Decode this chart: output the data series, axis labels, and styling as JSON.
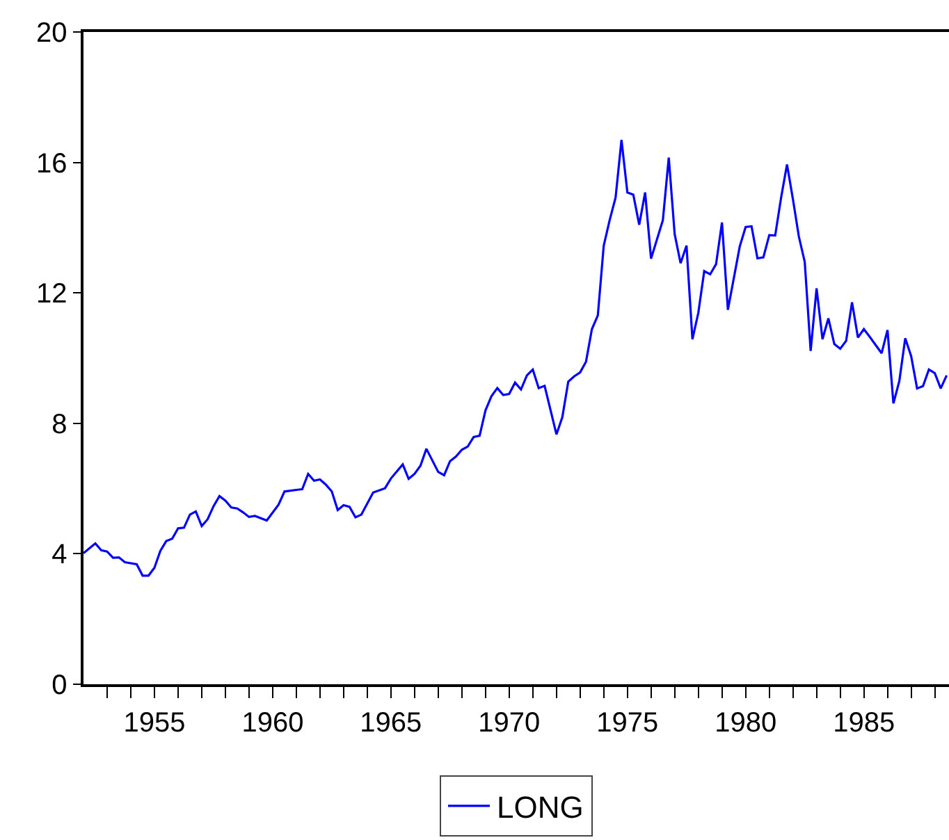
{
  "chart_data": {
    "type": "line",
    "legend": "bottom",
    "grid": false,
    "marker": "none",
    "line_style": "solid",
    "xlim": [
      1952,
      1988.6
    ],
    "ylim": [
      0,
      20
    ],
    "yticks": [
      0,
      4,
      8,
      12,
      16,
      20
    ],
    "xticks": [
      {
        "value": 1953,
        "label": null
      },
      {
        "value": 1954,
        "label": null
      },
      1955,
      {
        "value": 1956,
        "label": null
      },
      {
        "value": 1957,
        "label": null
      },
      {
        "value": 1958,
        "label": null
      },
      {
        "value": 1959,
        "label": null
      },
      1960,
      {
        "value": 1961,
        "label": null
      },
      {
        "value": 1962,
        "label": null
      },
      {
        "value": 1963,
        "label": null
      },
      {
        "value": 1964,
        "label": null
      },
      1965,
      {
        "value": 1966,
        "label": null
      },
      {
        "value": 1967,
        "label": null
      },
      {
        "value": 1968,
        "label": null
      },
      {
        "value": 1969,
        "label": null
      },
      1970,
      {
        "value": 1971,
        "label": null
      },
      {
        "value": 1972,
        "label": null
      },
      {
        "value": 1973,
        "label": null
      },
      {
        "value": 1974,
        "label": null
      },
      1975,
      {
        "value": 1976,
        "label": null
      },
      {
        "value": 1977,
        "label": null
      },
      {
        "value": 1978,
        "label": null
      },
      {
        "value": 1979,
        "label": null
      },
      1980,
      {
        "value": 1981,
        "label": null
      },
      {
        "value": 1982,
        "label": null
      },
      {
        "value": 1983,
        "label": null
      },
      {
        "value": 1984,
        "label": null
      },
      1985,
      {
        "value": 1986,
        "label": null
      },
      {
        "value": 1987,
        "label": null
      },
      {
        "value": 1988,
        "label": null
      }
    ],
    "series": [
      {
        "name": "LONG",
        "color": "#0000ff",
        "x": [
          1952.0,
          1952.5,
          1952.75,
          1953.0,
          1953.25,
          1953.5,
          1953.75,
          1954.25,
          1954.5,
          1954.75,
          1955.0,
          1955.25,
          1955.5,
          1955.75,
          1956.0,
          1956.25,
          1956.5,
          1956.75,
          1957.0,
          1957.25,
          1957.5,
          1957.75,
          1958.0,
          1958.25,
          1958.5,
          1958.75,
          1959.0,
          1959.25,
          1959.75,
          1960.25,
          1960.5,
          1961.0,
          1961.25,
          1961.5,
          1961.75,
          1962.0,
          1962.25,
          1962.5,
          1962.75,
          1963.0,
          1963.25,
          1963.5,
          1963.75,
          1964.25,
          1964.75,
          1965.0,
          1965.5,
          1965.75,
          1966.0,
          1966.25,
          1966.5,
          1967.0,
          1967.25,
          1967.5,
          1967.75,
          1968.0,
          1968.25,
          1968.5,
          1968.75,
          1969.0,
          1969.25,
          1969.5,
          1969.75,
          1970.0,
          1970.25,
          1970.5,
          1970.75,
          1971.0,
          1971.25,
          1971.5,
          1972.0,
          1972.25,
          1972.5,
          1972.75,
          1973.0,
          1973.25,
          1973.5,
          1973.75,
          1974.0,
          1974.25,
          1974.5,
          1974.75,
          1975.0,
          1975.25,
          1975.5,
          1975.75,
          1976.0,
          1976.5,
          1976.75,
          1977.0,
          1977.25,
          1977.5,
          1977.75,
          1978.0,
          1978.25,
          1978.5,
          1978.75,
          1979.0,
          1979.25,
          1979.5,
          1979.75,
          1980.0,
          1980.25,
          1980.5,
          1980.75,
          1981.0,
          1981.25,
          1981.5,
          1981.75,
          1982.0,
          1982.25,
          1982.5,
          1982.75,
          1983.0,
          1983.25,
          1983.5,
          1983.75,
          1984.0,
          1984.25,
          1984.5,
          1984.75,
          1985.0,
          1985.25,
          1985.75,
          1986.0,
          1986.25,
          1986.5,
          1986.75,
          1987.0,
          1987.25,
          1987.5,
          1987.75,
          1988.0,
          1988.25,
          1988.5
        ],
        "values": [
          4.02,
          4.32,
          4.11,
          4.07,
          3.88,
          3.89,
          3.74,
          3.68,
          3.33,
          3.33,
          3.57,
          4.09,
          4.39,
          4.46,
          4.78,
          4.8,
          5.2,
          5.3,
          4.85,
          5.06,
          5.46,
          5.77,
          5.63,
          5.42,
          5.39,
          5.27,
          5.13,
          5.16,
          5.02,
          5.51,
          5.91,
          5.96,
          5.98,
          6.45,
          6.24,
          6.28,
          6.12,
          5.91,
          5.34,
          5.49,
          5.44,
          5.12,
          5.2,
          5.88,
          6.01,
          6.31,
          6.74,
          6.3,
          6.45,
          6.7,
          7.22,
          6.51,
          6.41,
          6.84,
          6.98,
          7.19,
          7.29,
          7.58,
          7.62,
          8.4,
          8.83,
          9.08,
          8.87,
          8.9,
          9.25,
          9.04,
          9.47,
          9.65,
          9.08,
          9.15,
          7.66,
          8.19,
          9.28,
          9.44,
          9.56,
          9.89,
          10.89,
          11.31,
          13.45,
          14.23,
          14.92,
          16.69,
          15.08,
          15.01,
          14.09,
          15.08,
          13.05,
          14.23,
          16.15,
          13.8,
          12.91,
          13.45,
          10.58,
          11.39,
          12.67,
          12.57,
          12.88,
          14.16,
          11.48,
          12.45,
          13.42,
          14.02,
          14.04,
          13.06,
          13.09,
          13.77,
          13.76,
          14.92,
          15.94,
          14.87,
          13.73,
          12.95,
          10.22,
          12.14,
          10.58,
          11.22,
          10.43,
          10.29,
          10.53,
          11.71,
          10.63,
          10.89,
          10.65,
          10.15,
          10.86,
          8.61,
          9.3,
          10.61,
          10.06,
          9.07,
          9.14,
          9.65,
          9.54,
          9.07,
          9.47
        ]
      }
    ]
  }
}
